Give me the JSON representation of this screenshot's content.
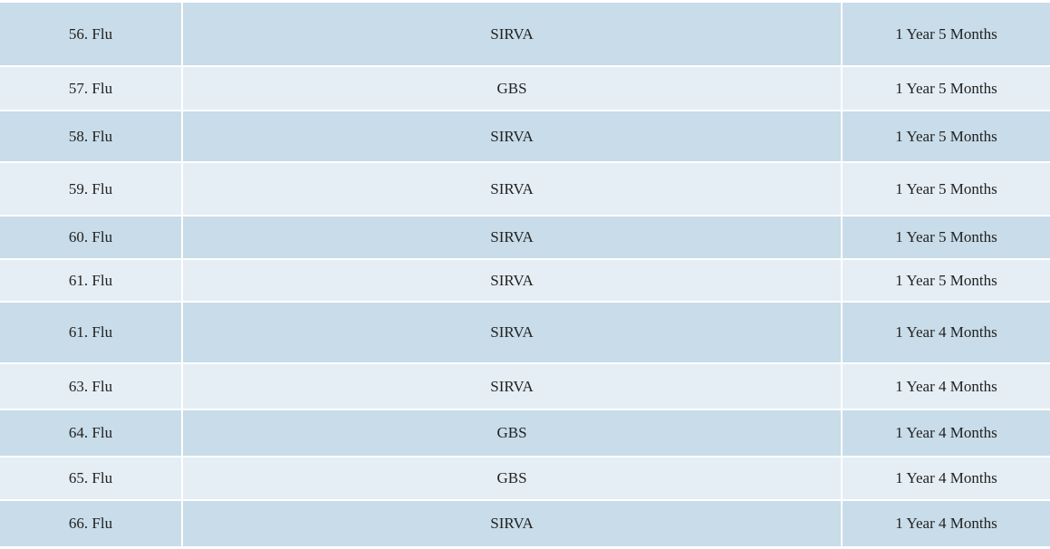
{
  "table": {
    "rows": [
      [
        "56. Flu",
        "SIRVA",
        "1 Year 5 Months"
      ],
      [
        "57. Flu",
        "GBS",
        "1 Year 5 Months"
      ],
      [
        "58. Flu",
        "SIRVA",
        "1 Year 5 Months"
      ],
      [
        "59. Flu",
        "SIRVA",
        "1 Year 5 Months"
      ],
      [
        "60. Flu",
        "SIRVA",
        "1 Year 5 Months"
      ],
      [
        "61. Flu",
        "SIRVA",
        "1 Year 5 Months"
      ],
      [
        "61. Flu",
        "SIRVA",
        "1 Year 4 Months"
      ],
      [
        "63. Flu",
        "SIRVA",
        "1 Year 4 Months"
      ],
      [
        "64. Flu",
        "GBS",
        "1 Year 4 Months"
      ],
      [
        "65. Flu",
        "GBS",
        "1 Year 4 Months"
      ],
      [
        "66. Flu",
        "SIRVA",
        "1 Year 4 Months"
      ]
    ]
  }
}
